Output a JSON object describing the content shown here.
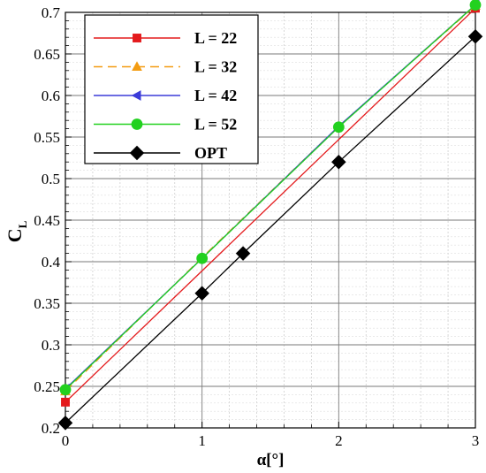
{
  "chart_data": {
    "type": "line",
    "xlabel": "α[°]",
    "ylabel_main": "C",
    "ylabel_sub": "L",
    "xlim": [
      0,
      3
    ],
    "ylim": [
      0.2,
      0.7
    ],
    "xticks": [
      "0",
      "1",
      "2",
      "3"
    ],
    "yticks": [
      "0.2",
      "0.25",
      "0.3",
      "0.35",
      "0.4",
      "0.45",
      "0.5",
      "0.55",
      "0.6",
      "0.65",
      "0.7"
    ],
    "grid": true,
    "minor_grid": true,
    "legend_position": "top-left",
    "series": [
      {
        "name": "L = 22",
        "color": "#e41a1c",
        "marker": "square",
        "dash": "",
        "lineColor": "#e41a1c",
        "points": [
          [
            0,
            0.231
          ],
          [
            3,
            0.705
          ]
        ]
      },
      {
        "name": "L = 32",
        "color": "#f39c12",
        "marker": "triangle-up",
        "dash": "10,6",
        "lineColor": "#f39c12",
        "points": [
          [
            0,
            0.244
          ],
          [
            1,
            0.405
          ],
          [
            2,
            0.563
          ],
          [
            3,
            0.708
          ]
        ]
      },
      {
        "name": "L = 42",
        "color": "#3b3bd9",
        "marker": "triangle-left",
        "dash": "",
        "lineColor": "#3b3bd9",
        "points": [
          [
            0,
            0.247
          ],
          [
            1,
            0.404
          ],
          [
            2,
            0.563
          ],
          [
            3,
            0.709
          ]
        ]
      },
      {
        "name": "L = 52",
        "color": "#22d11f",
        "marker": "circle",
        "dash": "",
        "lineColor": "#22d11f",
        "points": [
          [
            0,
            0.246
          ],
          [
            1,
            0.404
          ],
          [
            2,
            0.562
          ],
          [
            3,
            0.709
          ]
        ]
      },
      {
        "name": "OPT",
        "color": "#000000",
        "marker": "diamond",
        "dash": "",
        "lineColor": "#000000",
        "points": [
          [
            0,
            0.206
          ],
          [
            1,
            0.362
          ],
          [
            1.3,
            0.41
          ],
          [
            2,
            0.52
          ],
          [
            3,
            0.671
          ]
        ]
      }
    ]
  }
}
